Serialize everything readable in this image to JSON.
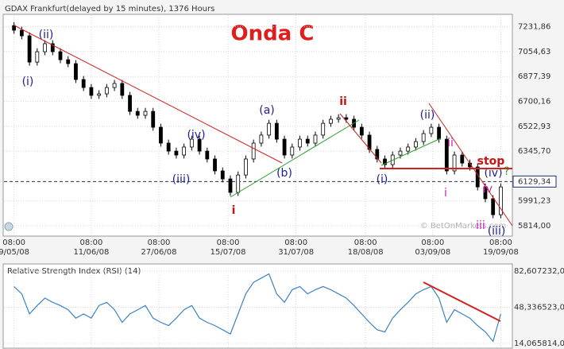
{
  "header": "GDAX Frankfurt(delayed by 15 minutes), 1376 Hours",
  "chart_data": [
    {
      "type": "candlestick",
      "title": "Onda C",
      "watermark": "© BetOnMarkets.com",
      "up_color": "#ffffff",
      "down_color": "#000000",
      "open": [
        7240,
        7207,
        7167,
        6980,
        7054,
        7111,
        7054,
        6997,
        6969,
        6856,
        6799,
        6743,
        6754,
        6799,
        6828,
        6743,
        6629,
        6601,
        6629,
        6516,
        6403,
        6346,
        6318,
        6375,
        6431,
        6346,
        6290,
        6205,
        6148,
        6052,
        6176,
        6290,
        6403,
        6460,
        6544,
        6431,
        6318,
        6375,
        6431,
        6403,
        6460,
        6544,
        6573,
        6584,
        6573,
        6516,
        6460,
        6358,
        6290,
        6250,
        6318,
        6346,
        6375,
        6414,
        6471,
        6516,
        6431,
        6205,
        6318,
        6261,
        6233,
        6091,
        6007,
        5893
      ],
      "high": [
        7265,
        7232,
        7192,
        7079,
        7136,
        7136,
        7079,
        7022,
        6994,
        6881,
        6824,
        6779,
        6824,
        6853,
        6853,
        6768,
        6654,
        6654,
        6654,
        6541,
        6428,
        6371,
        6400,
        6456,
        6456,
        6371,
        6315,
        6230,
        6173,
        6201,
        6315,
        6428,
        6485,
        6569,
        6569,
        6456,
        6400,
        6456,
        6456,
        6485,
        6569,
        6598,
        6609,
        6609,
        6598,
        6541,
        6485,
        6383,
        6315,
        6343,
        6371,
        6400,
        6439,
        6496,
        6541,
        6541,
        6456,
        6343,
        6343,
        6286,
        6258,
        6116,
        6032,
        6116
      ],
      "low": [
        7182,
        7142,
        6955,
        6955,
        7029,
        7029,
        6972,
        6944,
        6831,
        6774,
        6718,
        6718,
        6729,
        6774,
        6718,
        6604,
        6576,
        6576,
        6491,
        6378,
        6321,
        6293,
        6293,
        6350,
        6321,
        6265,
        6180,
        6123,
        6027,
        6027,
        6151,
        6265,
        6378,
        6435,
        6406,
        6293,
        6293,
        6350,
        6378,
        6378,
        6435,
        6519,
        6548,
        6548,
        6491,
        6435,
        6333,
        6265,
        6225,
        6225,
        6293,
        6321,
        6350,
        6389,
        6446,
        6406,
        6180,
        6180,
        6236,
        6208,
        6066,
        5982,
        5868,
        5868
      ],
      "close": [
        7207,
        7167,
        6980,
        7054,
        7111,
        7054,
        6997,
        6969,
        6856,
        6799,
        6743,
        6754,
        6799,
        6828,
        6743,
        6629,
        6601,
        6629,
        6516,
        6403,
        6346,
        6318,
        6375,
        6431,
        6346,
        6290,
        6205,
        6148,
        6052,
        6176,
        6290,
        6403,
        6460,
        6544,
        6431,
        6318,
        6375,
        6431,
        6403,
        6460,
        6544,
        6573,
        6584,
        6573,
        6516,
        6460,
        6358,
        6290,
        6250,
        6318,
        6346,
        6375,
        6414,
        6471,
        6516,
        6431,
        6205,
        6318,
        6261,
        6233,
        6091,
        6007,
        5893,
        6091
      ],
      "xlim": [
        -1.3,
        64.5
      ],
      "xticks": [
        {
          "value": 0,
          "label": "9/05/08",
          "time": "08:00"
        },
        {
          "value": 10,
          "label": "11/06/08",
          "time": "08:00"
        },
        {
          "value": 18.75,
          "label": "27/06/08",
          "time": "08:00"
        },
        {
          "value": 27.7,
          "label": "15/07/08",
          "time": "08:00"
        },
        {
          "value": 36.5,
          "label": "31/07/08",
          "time": "08:00"
        },
        {
          "value": 45.5,
          "label": "18/08/08",
          "time": "08:00"
        },
        {
          "value": 54.2,
          "label": "03/09/08",
          "time": "08:00"
        },
        {
          "value": 63,
          "label": "19/09/08",
          "time": "08:00"
        }
      ],
      "ylim": [
        5752,
        7309
      ],
      "yticks": [
        {
          "value": 5814,
          "label": "5814,00"
        },
        {
          "value": 5991.23,
          "label": "5991,23"
        },
        {
          "value": 6345.7,
          "label": "6345,70"
        },
        {
          "value": 6522.93,
          "label": "6522,93"
        },
        {
          "value": 6700.16,
          "label": "6700,16"
        },
        {
          "value": 6877.39,
          "label": "6877,39"
        },
        {
          "value": 7054.63,
          "label": "7054,63"
        },
        {
          "value": 7231.86,
          "label": "7231,86"
        }
      ],
      "last_price": {
        "value": 6129.34,
        "label": "6129,34"
      },
      "grid": true,
      "annotations": [
        {
          "text": "(i)",
          "color": "#1c1c9c"
        },
        {
          "text": "(ii)",
          "color": "#1c1c9c"
        },
        {
          "text": "(iii)",
          "color": "#1c1c9c"
        },
        {
          "text": "(iv)",
          "color": "#1c1c9c"
        },
        {
          "text": "i",
          "color": "#cc1111"
        },
        {
          "text": "(a)",
          "color": "#1c1c9c"
        },
        {
          "text": "(b)",
          "color": "#1c1c9c"
        },
        {
          "text": "ii",
          "color": "#cc1111"
        },
        {
          "text": "(ii)",
          "color": "#1c1c9c"
        },
        {
          "text": "(i)",
          "color": "#1c1c9c"
        },
        {
          "text": "ii",
          "color": "#cc22cc"
        },
        {
          "text": "i",
          "color": "#cc22cc"
        },
        {
          "text": "stop",
          "color": "#cc1111"
        },
        {
          "text": "(iv)",
          "color": "#1c1c9c"
        },
        {
          "text": "?",
          "color": "#22aa22"
        },
        {
          "text": "iv",
          "color": "#cc22cc"
        },
        {
          "text": "iii",
          "color": "#cc22cc"
        },
        {
          "text": "(iii)",
          "color": "#1c1c9c"
        }
      ]
    },
    {
      "type": "line",
      "title": "Relative Strength Index (RSI) (14)",
      "color": "#3a82c8",
      "values": [
        68,
        61,
        42,
        50,
        57,
        53,
        50,
        46,
        38,
        42,
        38,
        50,
        53,
        46,
        34,
        42,
        46,
        50,
        38,
        34,
        31,
        38,
        46,
        50,
        38,
        34,
        31,
        27,
        23,
        42,
        61,
        72,
        76,
        80,
        61,
        53,
        65,
        68,
        61,
        65,
        68,
        65,
        61,
        57,
        50,
        42,
        34,
        27,
        25,
        38,
        46,
        53,
        61,
        65,
        68,
        57,
        34,
        46,
        42,
        38,
        31,
        25,
        16,
        42
      ],
      "xlim": [
        -1.3,
        64.5
      ],
      "ylim": [
        14.06,
        82.6
      ],
      "yticks": [
        {
          "value": 14.06,
          "label": "14,06"
        },
        {
          "value": 48.33,
          "label": "48,33"
        },
        {
          "value": 82.6,
          "label": "82,60"
        }
      ],
      "y2lim": [
        5814,
        7232
      ],
      "y2ticks": [
        {
          "value": 5814,
          "label": "5814,00"
        },
        {
          "value": 6523,
          "label": "6523,00"
        },
        {
          "value": 7232,
          "label": "7232,00"
        }
      ]
    }
  ]
}
